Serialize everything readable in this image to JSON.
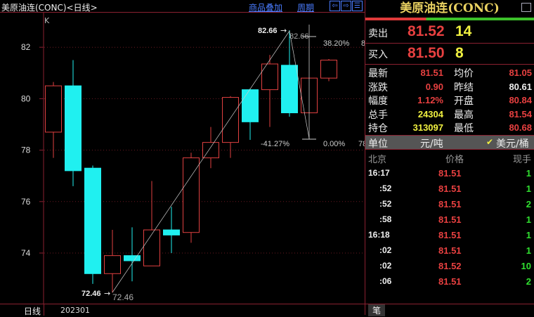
{
  "header": {
    "title": "美原油连(CONC)<日线>",
    "overlay_link": "商品叠加",
    "period_link": "周期",
    "nav_icons": [
      "arrow-left-icon",
      "arrow-right-icon",
      "layout-icon"
    ]
  },
  "chart_data": {
    "type": "candlestick",
    "label": "K",
    "yticks": [
      74,
      76,
      78,
      80,
      82
    ],
    "ylim": [
      72.2,
      82.9
    ],
    "candles": [
      [
        78.7,
        80.5,
        80.65,
        77.7
      ],
      [
        80.5,
        77.2,
        81.5,
        76.6
      ],
      [
        77.3,
        73.2,
        77.4,
        72.8
      ],
      [
        73.2,
        73.9,
        74.9,
        72.46
      ],
      [
        73.9,
        73.7,
        75.0,
        72.9
      ],
      [
        73.5,
        74.9,
        76.8,
        73.5
      ],
      [
        74.9,
        74.7,
        75.8,
        74.0
      ],
      [
        74.8,
        77.7,
        77.9,
        74.4
      ],
      [
        77.7,
        78.3,
        78.9,
        77.3
      ],
      [
        78.3,
        80.05,
        80.1,
        77.7
      ],
      [
        80.35,
        79.1,
        80.4,
        78.4
      ],
      [
        80.35,
        81.35,
        81.7,
        78.9
      ],
      [
        81.3,
        79.45,
        82.66,
        79.3
      ],
      [
        79.45,
        80.8,
        80.8,
        79.45
      ],
      [
        80.8,
        81.5,
        81.54,
        80.68
      ]
    ],
    "candle_fields": [
      "open",
      "close",
      "high",
      "low"
    ],
    "annotations": {
      "high": "82.66",
      "high2": "82.66",
      "low": "72.46",
      "low2": "72.46",
      "fib1": "38.20%",
      "fib2": "0.00%",
      "fib3": "-41.27%",
      "fib1r": "8",
      "fib2r": "78"
    },
    "up_color": "#e04040",
    "down_color": "#20f0f0"
  },
  "footer": {
    "period": "日线",
    "date": "202301"
  },
  "quote": {
    "title": "美原油连(CONC)",
    "sell": {
      "label": "卖出",
      "price": "81.52",
      "vol": "14"
    },
    "buy": {
      "label": "买入",
      "price": "81.50",
      "vol": "8"
    },
    "stats": [
      [
        "最新",
        "81.51",
        "均价",
        "81.05"
      ],
      [
        "涨跌",
        "0.90",
        "昨结",
        "80.61"
      ],
      [
        "幅度",
        "1.12%",
        "开盘",
        "80.84"
      ],
      [
        "总手",
        "24304",
        "最高",
        "81.54"
      ],
      [
        "持仓",
        "313097",
        "最低",
        "80.68"
      ]
    ],
    "unit": {
      "label": "单位",
      "cny": "元/吨",
      "usd": "美元/桶"
    },
    "ticks_header": [
      "北京",
      "价格",
      "现手"
    ],
    "ticks": [
      [
        "16:17",
        "81.51",
        "1"
      ],
      [
        ":52",
        "81.51",
        "1"
      ],
      [
        ":52",
        "81.51",
        "2"
      ],
      [
        ":58",
        "81.51",
        "1"
      ],
      [
        "16:18",
        "81.51",
        "1"
      ],
      [
        ":02",
        "81.51",
        "1"
      ],
      [
        ":02",
        "81.52",
        "10"
      ],
      [
        ":06",
        "81.51",
        "2"
      ]
    ],
    "tab": "笔"
  }
}
